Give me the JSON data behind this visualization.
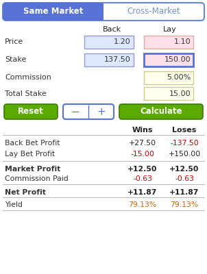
{
  "tab_same_market": "Same Market",
  "tab_cross_market": "Cross-Market",
  "tab_active_bg": "#5572d4",
  "tab_inactive_bg": "#ffffff",
  "tab_active_fg": "#ffffff",
  "tab_inactive_fg": "#7090d0",
  "tab_border": "#6688dd",
  "header_back": "Back",
  "header_lay": "Lay",
  "row_labels": [
    "Price",
    "Stake",
    "Commission",
    "Total Stake"
  ],
  "back_price": "1.20",
  "lay_price": "1.10",
  "back_stake": "137.50",
  "lay_stake": "150.00",
  "commission": "5.00%",
  "total_stake": "15.00",
  "back_field_bg": "#dde8ff",
  "lay_price_bg": "#ffe0e8",
  "lay_stake_bg": "#ffe0e8",
  "lay_stake_border": "#5572d4",
  "commission_bg": "#ffffee",
  "total_stake_bg": "#ffffee",
  "btn_reset_bg": "#5aaa00",
  "btn_calc_bg": "#5aaa00",
  "btn_fg": "#ffffff",
  "btn_minus_plus_border": "#5572d4",
  "btn_minus_plus_fg": "#5572d4",
  "results_header_wins": "Wins",
  "results_header_loses": "Loses",
  "results_rows": [
    {
      "label": "Back Bet Profit",
      "wins": "+27.50",
      "loses": "-137.50",
      "bold": false,
      "wins_color": "#222222",
      "loses_color": "#cc0000"
    },
    {
      "label": "Lay Bet Profit",
      "wins": "-15.00",
      "loses": "+150.00",
      "bold": false,
      "wins_color": "#cc0000",
      "loses_color": "#222222"
    },
    {
      "label": "Market Profit",
      "wins": "+12.50",
      "loses": "+12.50",
      "bold": true,
      "wins_color": "#222222",
      "loses_color": "#222222"
    },
    {
      "label": "Commission Paid",
      "wins": "-0.63",
      "loses": "-0.63",
      "bold": false,
      "wins_color": "#cc0000",
      "loses_color": "#cc0000"
    },
    {
      "label": "Net Profit",
      "wins": "+11.87",
      "loses": "+11.87",
      "bold": true,
      "wins_color": "#222222",
      "loses_color": "#222222"
    },
    {
      "label": "Yield",
      "wins": "79.13%",
      "loses": "79.13%",
      "bold": false,
      "wins_color": "#cc6600",
      "loses_color": "#cc6600"
    }
  ],
  "bg_color": "#ffffff",
  "divider_color": "#bbbbbb"
}
